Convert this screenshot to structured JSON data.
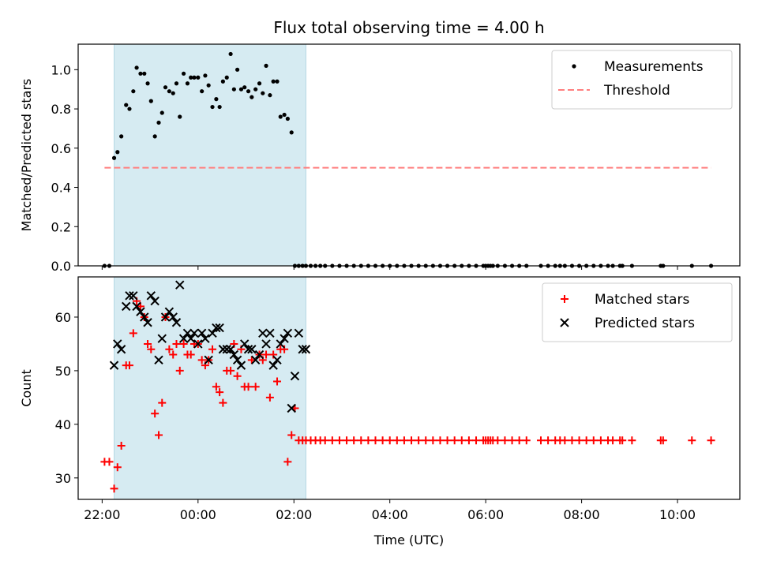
{
  "figure_title": "Flux total observing time = 4.00 h",
  "chart_data": [
    {
      "type": "scatter",
      "title": "Flux total observing time = 4.00 h",
      "ylabel": "Matched/Predicted stars",
      "xlabel": "",
      "x_unit": "hours",
      "xlim": [
        -2.5,
        11.3
      ],
      "ylim": [
        0.0,
        1.13
      ],
      "yticks": [
        0.0,
        0.2,
        0.4,
        0.6,
        0.8,
        1.0
      ],
      "ytick_labels": [
        "0.0",
        "0.2",
        "0.4",
        "0.6",
        "0.8",
        "1.0"
      ],
      "highlight_span": [
        -1.75,
        2.25
      ],
      "highlight_color": "#add8e6",
      "legend": {
        "placement": "top-right",
        "entries": [
          {
            "label": "Measurements",
            "marker": "dot",
            "color": "#000000"
          },
          {
            "label": "Threshold",
            "marker": "dashed-line",
            "color": "#ff7f7f"
          }
        ]
      },
      "series": [
        {
          "name": "Measurements",
          "color": "#000000",
          "marker": "dot",
          "x": [
            -1.95,
            -1.85,
            -1.75,
            -1.68,
            -1.6,
            -1.5,
            -1.43,
            -1.35,
            -1.28,
            -1.2,
            -1.12,
            -1.05,
            -0.98,
            -0.9,
            -0.82,
            -0.75,
            -0.68,
            -0.6,
            -0.52,
            -0.45,
            -0.38,
            -0.3,
            -0.22,
            -0.15,
            -0.08,
            0.0,
            0.08,
            0.15,
            0.22,
            0.3,
            0.38,
            0.45,
            0.52,
            0.6,
            0.68,
            0.75,
            0.82,
            0.9,
            0.97,
            1.05,
            1.12,
            1.2,
            1.28,
            1.35,
            1.42,
            1.5,
            1.57,
            1.65,
            1.72,
            1.8,
            1.87,
            1.95,
            2.02,
            2.1,
            2.18,
            2.25
          ],
          "y": [
            0.0,
            0.0,
            0.55,
            0.58,
            0.66,
            0.82,
            0.8,
            0.89,
            1.01,
            0.98,
            0.98,
            0.93,
            0.84,
            0.66,
            0.73,
            0.78,
            0.91,
            0.89,
            0.88,
            0.93,
            0.76,
            0.98,
            0.93,
            0.96,
            0.96,
            0.96,
            0.89,
            0.97,
            0.92,
            0.81,
            0.85,
            0.81,
            0.94,
            0.96,
            1.08,
            0.9,
            1.0,
            0.9,
            0.91,
            0.89,
            0.86,
            0.9,
            0.93,
            0.88,
            1.02,
            0.87,
            0.94,
            0.94,
            0.76,
            0.77,
            0.75,
            0.68,
            0.0,
            0.0,
            0.0,
            0.0
          ]
        },
        {
          "name": "Measurements (zero)",
          "color": "#000000",
          "marker": "dot",
          "x": [
            2.35,
            2.45,
            2.55,
            2.65,
            2.8,
            2.95,
            3.1,
            3.25,
            3.4,
            3.55,
            3.7,
            3.85,
            4.0,
            4.15,
            4.3,
            4.45,
            4.6,
            4.75,
            4.9,
            5.05,
            5.2,
            5.35,
            5.5,
            5.65,
            5.8,
            5.95,
            6.0,
            6.05,
            6.1,
            6.15,
            6.25,
            6.4,
            6.55,
            6.7,
            6.85,
            7.15,
            7.3,
            7.45,
            7.55,
            7.65,
            7.8,
            7.95,
            8.1,
            8.25,
            8.4,
            8.55,
            8.65,
            8.8,
            8.85,
            9.05,
            9.65,
            9.7,
            10.3,
            10.7
          ],
          "y": [
            0.0,
            0.0,
            0.0,
            0.0,
            0.0,
            0.0,
            0.0,
            0.0,
            0.0,
            0.0,
            0.0,
            0.0,
            0.0,
            0.0,
            0.0,
            0.0,
            0.0,
            0.0,
            0.0,
            0.0,
            0.0,
            0.0,
            0.0,
            0.0,
            0.0,
            0.0,
            0.0,
            0.0,
            0.0,
            0.0,
            0.0,
            0.0,
            0.0,
            0.0,
            0.0,
            0.0,
            0.0,
            0.0,
            0.0,
            0.0,
            0.0,
            0.0,
            0.0,
            0.0,
            0.0,
            0.0,
            0.0,
            0.0,
            0.0,
            0.0,
            0.0,
            0.0,
            0.0,
            0.0
          ]
        },
        {
          "name": "Threshold",
          "color": "#ff7f7f",
          "marker": "dashed-line",
          "x": [
            -1.95,
            10.7
          ],
          "y": [
            0.5,
            0.5
          ]
        }
      ]
    },
    {
      "type": "scatter",
      "title": "",
      "ylabel": "Count",
      "xlabel": "Time (UTC)",
      "x_unit": "hours",
      "xlim": [
        -2.5,
        11.3
      ],
      "ylim": [
        26.0,
        67.5
      ],
      "yticks": [
        30,
        40,
        50,
        60
      ],
      "ytick_labels": [
        "30",
        "40",
        "50",
        "60"
      ],
      "xticks": [
        -2,
        0,
        2,
        4,
        6,
        8,
        10
      ],
      "xtick_labels": [
        "22:00",
        "00:00",
        "02:00",
        "04:00",
        "06:00",
        "08:00",
        "10:00"
      ],
      "highlight_span": [
        -1.75,
        2.25
      ],
      "highlight_color": "#add8e6",
      "legend": {
        "placement": "top-right",
        "entries": [
          {
            "label": "Matched stars",
            "marker": "plus",
            "color": "#ff0000"
          },
          {
            "label": "Predicted stars",
            "marker": "x",
            "color": "#000000"
          }
        ]
      },
      "series": [
        {
          "name": "Matched stars",
          "color": "#ff0000",
          "marker": "plus",
          "x": [
            -1.95,
            -1.85,
            -1.75,
            -1.68,
            -1.6,
            -1.5,
            -1.43,
            -1.35,
            -1.28,
            -1.2,
            -1.12,
            -1.05,
            -0.98,
            -0.9,
            -0.82,
            -0.75,
            -0.68,
            -0.6,
            -0.52,
            -0.45,
            -0.38,
            -0.3,
            -0.22,
            -0.15,
            -0.08,
            0.0,
            0.08,
            0.15,
            0.22,
            0.3,
            0.38,
            0.45,
            0.52,
            0.6,
            0.68,
            0.75,
            0.82,
            0.9,
            0.97,
            1.05,
            1.12,
            1.2,
            1.28,
            1.35,
            1.42,
            1.5,
            1.57,
            1.65,
            1.72,
            1.8,
            1.87,
            1.95,
            2.02,
            2.1,
            2.18,
            2.25,
            2.35,
            2.45,
            2.55,
            2.65,
            2.8,
            2.95,
            3.1,
            3.25,
            3.4,
            3.55,
            3.7,
            3.85,
            4.0,
            4.15,
            4.3,
            4.45,
            4.6,
            4.75,
            4.9,
            5.05,
            5.2,
            5.35,
            5.5,
            5.65,
            5.8,
            5.95,
            6.0,
            6.05,
            6.1,
            6.15,
            6.25,
            6.4,
            6.55,
            6.7,
            6.85,
            7.15,
            7.3,
            7.45,
            7.55,
            7.65,
            7.8,
            7.95,
            8.1,
            8.25,
            8.4,
            8.55,
            8.65,
            8.8,
            8.85,
            9.05,
            9.65,
            9.7,
            10.3,
            10.7
          ],
          "y": [
            33,
            33,
            28,
            32,
            36,
            51,
            51,
            57,
            63,
            62,
            60,
            55,
            54,
            42,
            38,
            44,
            60,
            54,
            53,
            55,
            50,
            55,
            53,
            53,
            55,
            55,
            52,
            51,
            52,
            54,
            47,
            46,
            44,
            50,
            50,
            55,
            49,
            54,
            47,
            47,
            52,
            47,
            53,
            52,
            53,
            45,
            53,
            48,
            54,
            54,
            33,
            38,
            43,
            37,
            37,
            37,
            37,
            37,
            37,
            37,
            37,
            37,
            37,
            37,
            37,
            37,
            37,
            37,
            37,
            37,
            37,
            37,
            37,
            37,
            37,
            37,
            37,
            37,
            37,
            37,
            37,
            37,
            37,
            37,
            37,
            37,
            37,
            37,
            37,
            37,
            37,
            37,
            37,
            37,
            37,
            37,
            37,
            37,
            37,
            37,
            37,
            37,
            37,
            37,
            37,
            37,
            37,
            37,
            37,
            37
          ]
        },
        {
          "name": "Predicted stars",
          "color": "#000000",
          "marker": "x",
          "x": [
            -1.75,
            -1.68,
            -1.6,
            -1.5,
            -1.43,
            -1.35,
            -1.28,
            -1.2,
            -1.12,
            -1.05,
            -0.98,
            -0.9,
            -0.82,
            -0.75,
            -0.68,
            -0.6,
            -0.52,
            -0.45,
            -0.38,
            -0.3,
            -0.22,
            -0.15,
            -0.08,
            0.0,
            0.08,
            0.15,
            0.22,
            0.3,
            0.38,
            0.45,
            0.52,
            0.6,
            0.68,
            0.75,
            0.82,
            0.9,
            0.97,
            1.05,
            1.12,
            1.2,
            1.28,
            1.35,
            1.42,
            1.5,
            1.57,
            1.65,
            1.72,
            1.8,
            1.87,
            1.95,
            2.02,
            2.1,
            2.18,
            2.25
          ],
          "y": [
            51,
            55,
            54,
            62,
            64,
            64,
            62,
            61,
            60,
            59,
            64,
            63,
            52,
            56,
            60,
            61,
            60,
            59,
            66,
            56,
            57,
            56,
            57,
            55,
            57,
            56,
            52,
            57,
            58,
            58,
            54,
            54,
            54,
            53,
            52,
            51,
            55,
            54,
            54,
            52,
            53,
            57,
            55,
            57,
            51,
            52,
            55,
            56,
            57,
            43,
            49,
            57,
            54,
            54
          ]
        }
      ]
    }
  ]
}
